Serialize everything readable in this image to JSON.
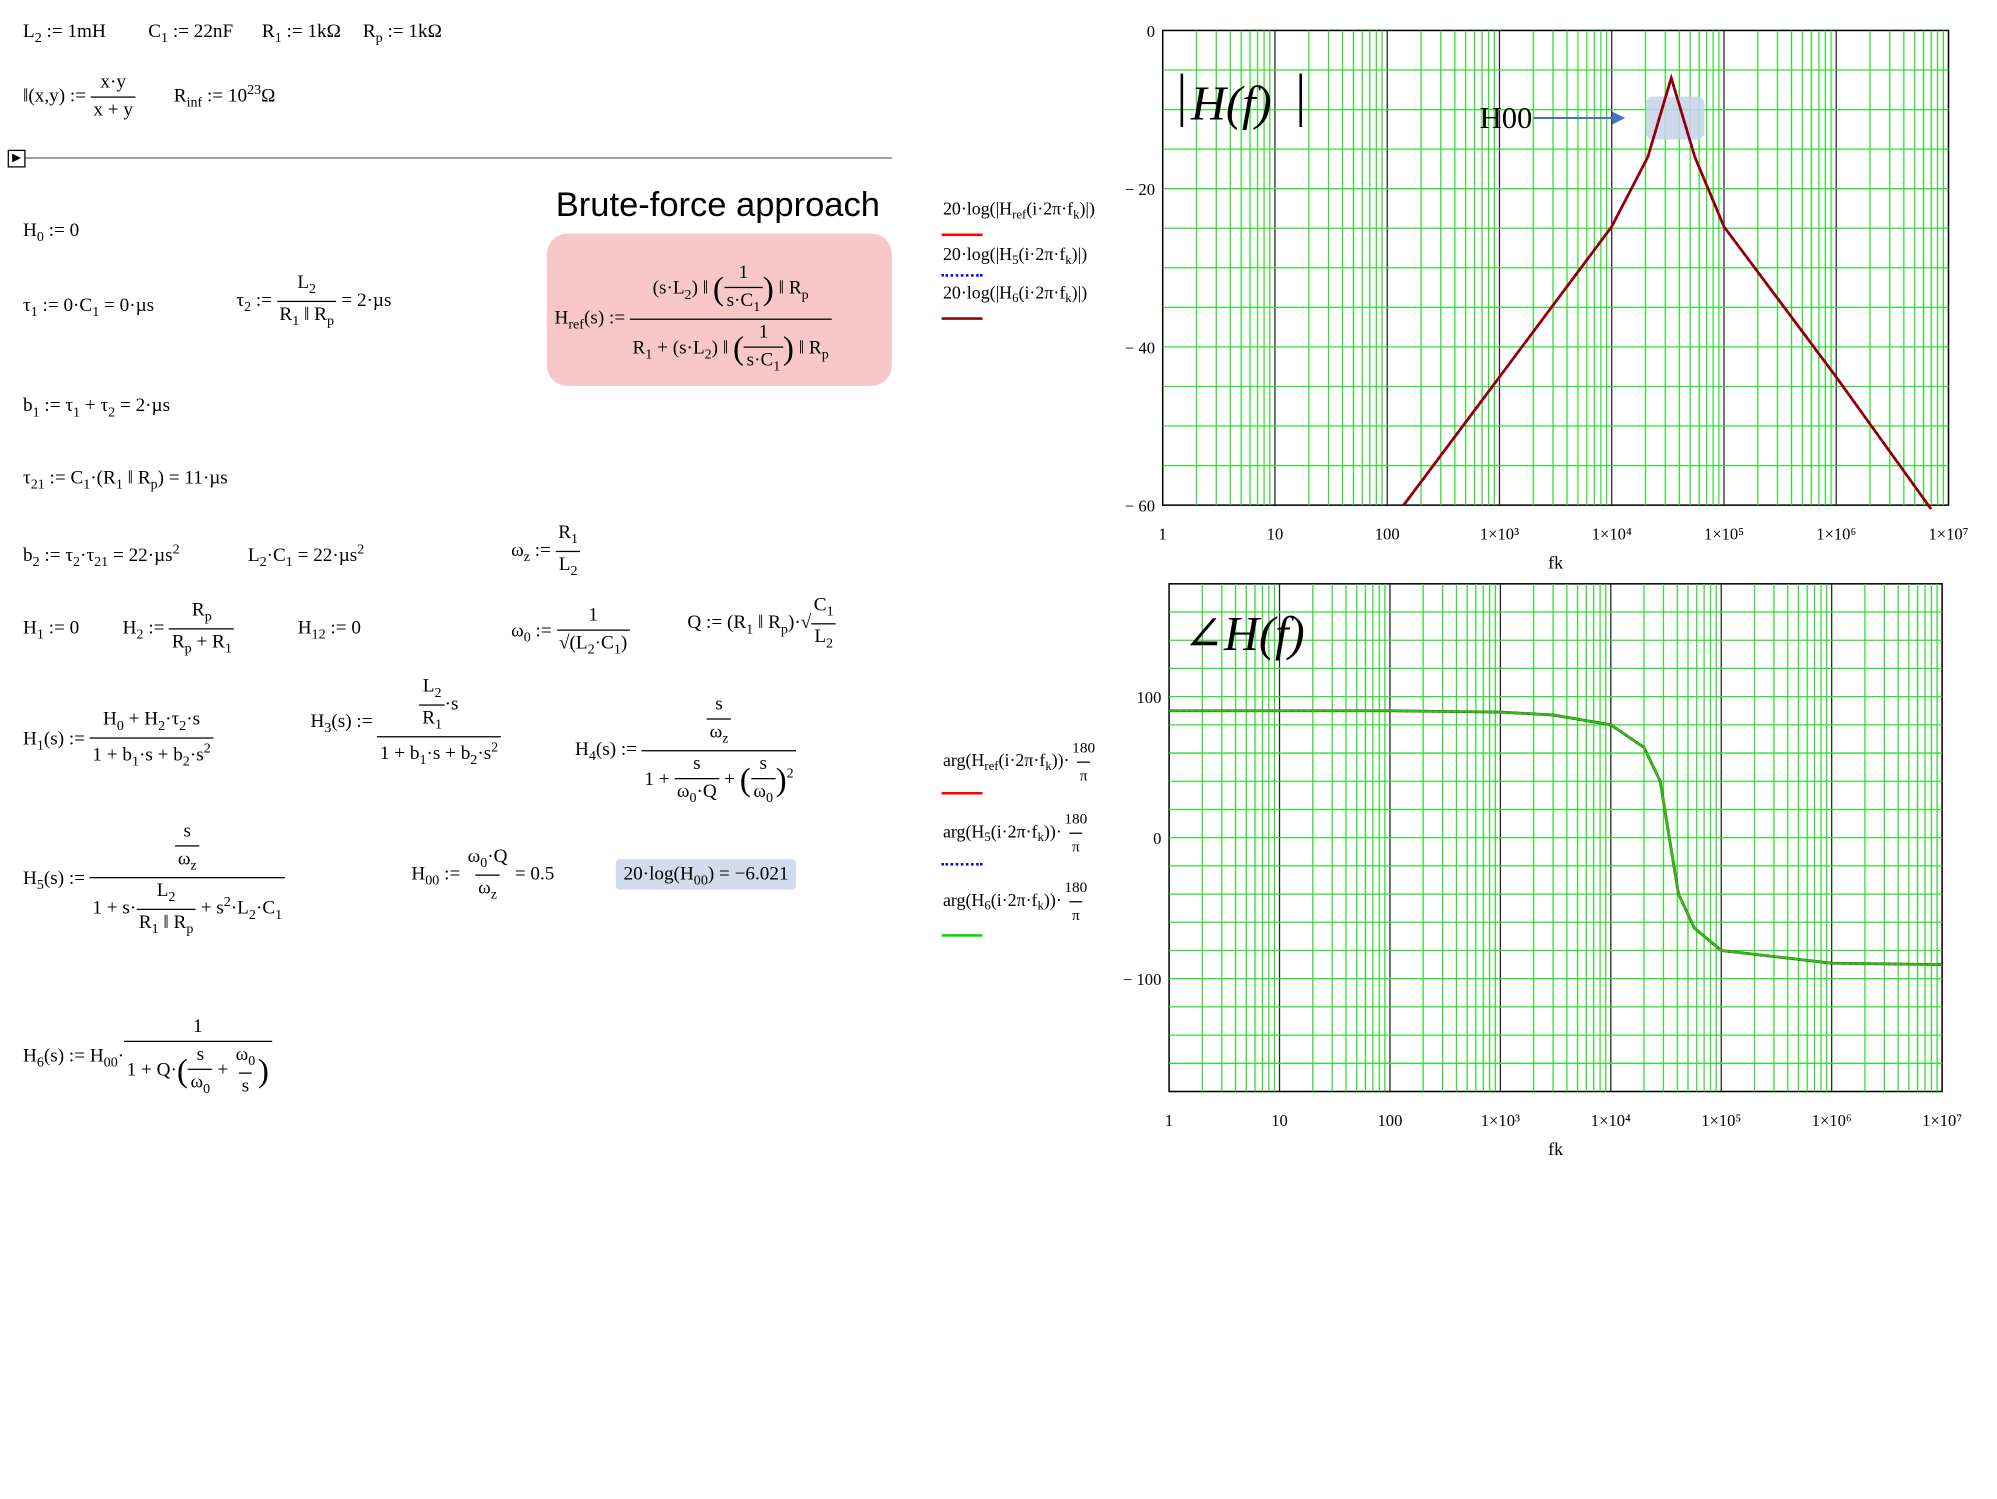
{
  "defs": {
    "L2": "L",
    "L2_def": " := 1mH",
    "C1_def": " := 22nF",
    "R1_def": " := 1kΩ",
    "Rp_def": " := 1kΩ",
    "par_lhs": "‖(x,y) :=",
    "par_num": "x·y",
    "par_den": "x + y",
    "rinf": "R",
    "rinf_def": " := 10",
    "rinf_exp": "23",
    "rinf_unit": "Ω"
  },
  "equations": {
    "h0": "H₀ := 0",
    "tau1": "τ₁ := 0·C₁ = 0·µs",
    "tau2_lhs": "τ₂ :=",
    "tau2_num": "L₂",
    "tau2_den": "R₁ ‖ Rₚ",
    "tau2_res": "= 2·µs",
    "b1": "b₁ := τ₁ + τ₂ = 2·µs",
    "tau21": "τ₂₁ := C₁·(R₁ ‖ Rₚ) = 11·µs",
    "b2": "b₂ := τ₂·τ₂₁ = 22·µs²",
    "l2c1": "L₂·C₁ = 22·µs²",
    "wz_lhs": "ωz :=",
    "wz_num": "R₁",
    "wz_den": "L₂",
    "h1": "H₁ := 0",
    "h2_lhs": "H₂ :=",
    "h2_num": "Rₚ",
    "h2_den": "Rₚ + R₁",
    "h12": "H₁₂ := 0",
    "w0_lhs": "ω₀ :=",
    "w0_num": "1",
    "w0_den": "√(L₂·C₁)",
    "q_lhs": "Q := (R₁ ‖ Rₚ)·",
    "q_num": "C₁",
    "q_den": "L₂",
    "h1s_lhs": "H₁(s) :=",
    "h1s_num": "H₀ + H₂·τ₂·s",
    "h1s_den": "1 + b₁·s + b₂·s²",
    "h3s_lhs": "H₃(s) :=",
    "h3s_num": "(L₂/R₁)·s",
    "h3s_den": "1 + b₁·s + b₂·s²",
    "h4s_lhs": "H₄(s) :=",
    "h4s_num": "s/ωz",
    "h4s_den": "1 + s/(ω₀·Q) + (s/ω₀)²",
    "h5s_lhs": "H₅(s) :=",
    "h5s_num": "s/ωz",
    "h5s_den": "1 + s·L₂/(R₁ ‖ Rₚ) + s²·L₂·C₁",
    "h00_lhs": "H₀₀ :=",
    "h00_num": "ω₀·Q",
    "h00_den": "ωz",
    "h00_res": "= 0.5",
    "h00_db": "20·log(H₀₀) = −6.021",
    "h6s_lhs": "H₆(s) := H₀₀·",
    "h6s_num": "1",
    "h6s_den": "1 + Q·(s/ω₀ + ω₀/s)"
  },
  "brute": {
    "title": "Brute-force approach",
    "lhs": "Href(s) :=",
    "num": "(s·L₂) ‖ (1/(s·C₁)) ‖ Rₚ",
    "den": "R₁ + (s·L₂) ‖ (1/(s·C₁)) ‖ Rₚ"
  },
  "legend_mag": [
    {
      "text": "20·log(|Href(i·2π·fk)|)",
      "color": "#ff0000",
      "style": "solid"
    },
    {
      "text": "20·log(|H5(i·2π·fk)|)",
      "color": "#0000ff",
      "style": "dotted"
    },
    {
      "text": "20·log(|H6(i·2π·fk)|)",
      "color": "#8b0000",
      "style": "solid"
    }
  ],
  "legend_phase": [
    {
      "text": "arg(Href(i·2π·fk))·180/π",
      "color": "#ff0000",
      "style": "solid"
    },
    {
      "text": "arg(H5(i·2π·fk))·180/π",
      "color": "#0000ff",
      "style": "dotted"
    },
    {
      "text": "arg(H6(i·2π·fk))·180/π",
      "color": "#00dd00",
      "style": "solid"
    }
  ],
  "chart_data": [
    {
      "type": "line",
      "title": "|H(f)|",
      "xlabel": "fk",
      "ylabel": "",
      "x_scale": "log",
      "xlim": [
        1,
        10000000
      ],
      "ylim": [
        -60,
        0
      ],
      "x_tick_labels": [
        "1",
        "10",
        "100",
        "1×10³",
        "1×10⁴",
        "1×10⁵",
        "1×10⁶",
        "1×10⁷"
      ],
      "y_tick_labels": [
        "0",
        "− 20",
        "− 40",
        "− 60"
      ],
      "annotation": "H00",
      "grid": true,
      "series": [
        {
          "name": "20·log(|Href(i·2π·fk)|)",
          "x": [
            140,
            1000,
            10000,
            21000,
            33900,
            55000,
            100000,
            1000000,
            7000000
          ],
          "y": [
            -60,
            -43.8,
            -24.8,
            -16,
            -6.0,
            -16,
            -24.8,
            -43.8,
            -60.5
          ]
        },
        {
          "name": "20·log(|H5(i·2π·fk)|)",
          "x": [
            140,
            1000,
            10000,
            21000,
            33900,
            55000,
            100000,
            1000000,
            7000000
          ],
          "y": [
            -60,
            -43.8,
            -24.8,
            -16,
            -6.0,
            -16,
            -24.8,
            -43.8,
            -60.5
          ]
        },
        {
          "name": "20·log(|H6(i·2π·fk)|)",
          "x": [
            140,
            1000,
            10000,
            21000,
            33900,
            55000,
            100000,
            1000000,
            7000000
          ],
          "y": [
            -60,
            -43.8,
            -24.8,
            -16,
            -6.0,
            -16,
            -24.8,
            -43.8,
            -60.5
          ]
        }
      ]
    },
    {
      "type": "line",
      "title": "∠H(f)",
      "xlabel": "fk",
      "ylabel": "",
      "x_scale": "log",
      "xlim": [
        1,
        10000000
      ],
      "ylim": [
        -180,
        180
      ],
      "x_tick_labels": [
        "1",
        "10",
        "100",
        "1×10³",
        "1×10⁴",
        "1×10⁵",
        "1×10⁶",
        "1×10⁷"
      ],
      "y_tick_labels": [
        "100",
        "0",
        "− 100"
      ],
      "grid": true,
      "series": [
        {
          "name": "arg(Href(i·2π·fk))·180/π",
          "x": [
            1,
            100,
            1000,
            3000,
            10000,
            20000,
            28000,
            33900,
            41000,
            57000,
            100000,
            1000000,
            10000000
          ],
          "y": [
            90,
            90,
            89,
            87,
            80,
            64,
            40,
            0,
            -40,
            -64,
            -80,
            -89,
            -90
          ]
        },
        {
          "name": "arg(H5(i·2π·fk))·180/π",
          "x": [
            1,
            100,
            1000,
            3000,
            10000,
            20000,
            28000,
            33900,
            41000,
            57000,
            100000,
            1000000,
            10000000
          ],
          "y": [
            90,
            90,
            89,
            87,
            80,
            64,
            40,
            0,
            -40,
            -64,
            -80,
            -89,
            -90
          ]
        },
        {
          "name": "arg(H6(i·2π·fk))·180/π",
          "x": [
            1,
            100,
            1000,
            3000,
            10000,
            20000,
            28000,
            33900,
            41000,
            57000,
            100000,
            1000000,
            10000000
          ],
          "y": [
            90,
            90,
            89,
            87,
            80,
            64,
            40,
            0,
            -40,
            -64,
            -80,
            -89,
            -90
          ]
        }
      ]
    }
  ]
}
